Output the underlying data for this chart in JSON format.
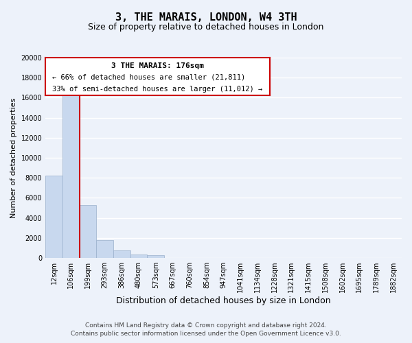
{
  "title": "3, THE MARAIS, LONDON, W4 3TH",
  "subtitle": "Size of property relative to detached houses in London",
  "xlabel": "Distribution of detached houses by size in London",
  "ylabel": "Number of detached properties",
  "categories": [
    "12sqm",
    "106sqm",
    "199sqm",
    "293sqm",
    "386sqm",
    "480sqm",
    "573sqm",
    "667sqm",
    "760sqm",
    "854sqm",
    "947sqm",
    "1041sqm",
    "1134sqm",
    "1228sqm",
    "1321sqm",
    "1415sqm",
    "1508sqm",
    "1602sqm",
    "1695sqm",
    "1789sqm",
    "1882sqm"
  ],
  "bar_values": [
    8200,
    16500,
    5300,
    1800,
    780,
    320,
    280,
    0,
    0,
    0,
    0,
    0,
    0,
    0,
    0,
    0,
    0,
    0,
    0,
    0,
    0
  ],
  "bar_color": "#c8d8ee",
  "bar_edge_color": "#9ab0cc",
  "vline_color": "#cc0000",
  "ylim": [
    0,
    20000
  ],
  "yticks": [
    0,
    2000,
    4000,
    6000,
    8000,
    10000,
    12000,
    14000,
    16000,
    18000,
    20000
  ],
  "annotation_title": "3 THE MARAIS: 176sqm",
  "annotation_line1": "← 66% of detached houses are smaller (21,811)",
  "annotation_line2": "33% of semi-detached houses are larger (11,012) →",
  "annotation_box_color": "#ffffff",
  "annotation_box_edge": "#cc0000",
  "footer1": "Contains HM Land Registry data © Crown copyright and database right 2024.",
  "footer2": "Contains public sector information licensed under the Open Government Licence v3.0.",
  "bg_color": "#edf2fa",
  "plot_bg_color": "#edf2fa",
  "grid_color": "#ffffff",
  "title_fontsize": 11,
  "subtitle_fontsize": 9,
  "xlabel_fontsize": 9,
  "ylabel_fontsize": 8,
  "tick_fontsize": 7,
  "footer_fontsize": 6.5,
  "annotation_fontsize_title": 8,
  "annotation_fontsize_lines": 7.5
}
